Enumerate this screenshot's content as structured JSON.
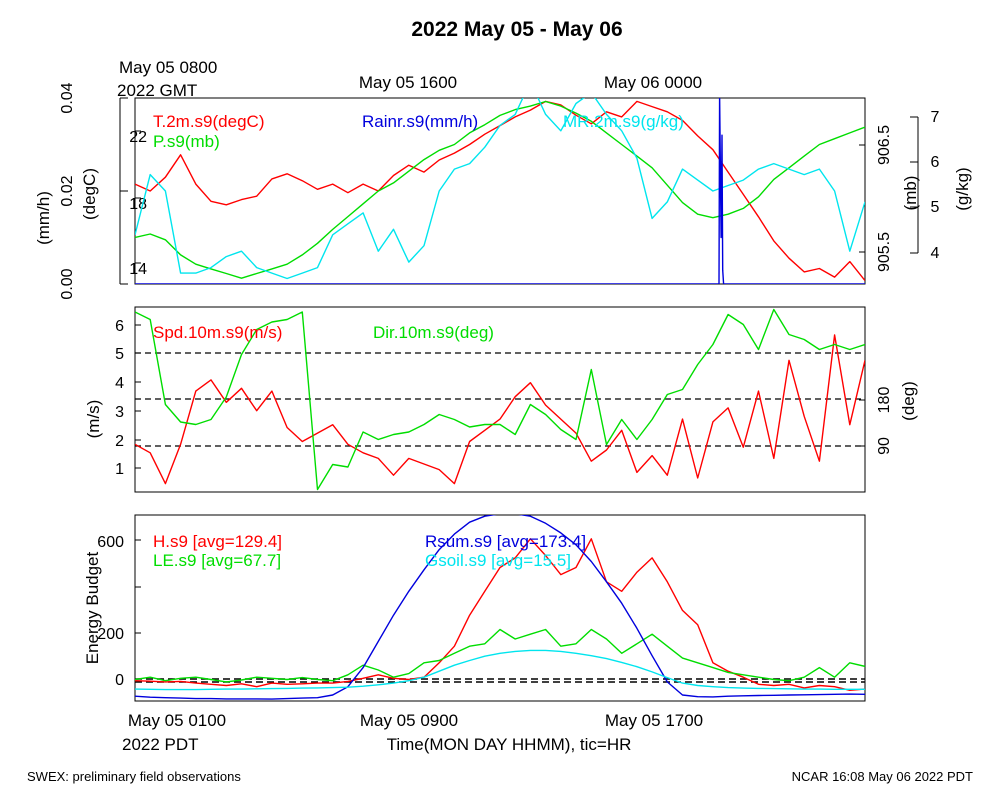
{
  "title": "2022 May 05 - May 06",
  "gmt_label": [
    "May 05 0800",
    "2022 GMT"
  ],
  "top_time_labels": [
    "May 05 1600",
    "May 06 0000"
  ],
  "bottom_time_labels": [
    "May 05 0100",
    "May 05 0900",
    "May 05 1700"
  ],
  "pdt_label": "2022 PDT",
  "xlabel": "Time(MON DAY HHMM), tic=HR",
  "footer_left": "SWEX: preliminary field observations",
  "footer_right": "NCAR 16:08 May 06 2022 PDT",
  "colors": {
    "red": "#ff0000",
    "green": "#00dd00",
    "blue": "#0000dd",
    "cyan": "#00e5ee"
  },
  "chart_data": [
    {
      "type": "line",
      "x_range_hours": [
        0,
        24
      ],
      "axes": {
        "rain": {
          "label": "(mm/h)",
          "ticks": [
            "0.00",
            "0.02",
            "0.04"
          ],
          "range": [
            0,
            0.04
          ]
        },
        "temp": {
          "label": "(degC)",
          "ticks": [
            "14",
            "18",
            "22"
          ],
          "range": [
            13.2,
            24.0
          ]
        },
        "pressure": {
          "label": "(mb)",
          "ticks": [
            "905.5",
            "906.5"
          ],
          "range": [
            905.25,
            906.85
          ]
        },
        "mixing_ratio": {
          "label": "(g/kg)",
          "ticks": [
            "4",
            "5",
            "6",
            "7"
          ],
          "range": [
            3.7,
            7.1
          ]
        }
      },
      "series": [
        {
          "name": "T.2m.s9(degC)",
          "color": "red",
          "axis": "temp",
          "x": [
            0,
            0.5,
            1,
            1.5,
            2,
            2.5,
            3,
            3.5,
            4,
            4.5,
            5,
            5.5,
            6,
            6.5,
            7,
            7.5,
            8,
            8.5,
            9,
            9.5,
            10,
            10.5,
            11,
            11.5,
            12,
            12.5,
            13,
            13.5,
            14,
            14.5,
            15,
            15.5,
            16,
            16.5,
            17,
            17.5,
            18,
            18.5,
            19,
            19.5,
            20,
            20.5,
            21,
            21.5,
            22,
            22.5,
            23,
            23.5,
            24
          ],
          "values": [
            19.0,
            18.6,
            19.4,
            20.7,
            19.0,
            18.0,
            17.8,
            18.1,
            18.3,
            19.3,
            19.6,
            19.2,
            18.7,
            19.0,
            18.5,
            19.0,
            18.6,
            19.5,
            20.1,
            19.7,
            20.4,
            20.8,
            21.3,
            21.9,
            22.4,
            22.9,
            23.3,
            23.8,
            23.6,
            23.0,
            22.5,
            23.2,
            22.9,
            23.8,
            23.5,
            23.2,
            22.7,
            21.8,
            21.0,
            19.7,
            18.4,
            17.1,
            15.7,
            14.7,
            13.9,
            14.1,
            13.6,
            14.5,
            13.4
          ]
        },
        {
          "name": "P.s9(mb)",
          "color": "green",
          "axis": "pressure",
          "x": [
            0,
            0.5,
            1,
            1.5,
            2,
            2.5,
            3,
            3.5,
            4,
            4.5,
            5,
            5.5,
            6,
            6.5,
            7,
            7.5,
            8,
            8.5,
            9,
            9.5,
            10,
            10.5,
            11,
            11.5,
            12,
            12.5,
            13,
            13.5,
            14,
            14.5,
            15,
            15.5,
            16,
            16.5,
            17,
            17.5,
            18,
            18.5,
            19,
            19.5,
            20,
            20.5,
            21,
            21.5,
            22,
            22.5,
            23,
            23.5,
            24
          ],
          "values": [
            905.65,
            905.68,
            905.63,
            905.5,
            905.42,
            905.38,
            905.34,
            905.3,
            905.34,
            905.38,
            905.42,
            905.5,
            905.6,
            905.72,
            905.83,
            905.94,
            906.05,
            906.12,
            906.22,
            906.32,
            906.4,
            906.45,
            906.55,
            906.62,
            906.7,
            906.75,
            906.78,
            906.82,
            906.78,
            906.72,
            906.65,
            906.55,
            906.45,
            906.35,
            906.25,
            906.1,
            905.95,
            905.85,
            905.82,
            905.85,
            905.9,
            906.0,
            906.15,
            906.25,
            906.35,
            906.45,
            906.5,
            906.55,
            906.6
          ]
        },
        {
          "name": "MR.2m.s9(g/kg)",
          "color": "cyan",
          "axis": "mixing_ratio",
          "x": [
            0,
            0.5,
            1,
            1.5,
            2,
            2.5,
            3,
            3.5,
            4,
            4.5,
            5,
            5.5,
            6,
            6.5,
            7,
            7.5,
            8,
            8.5,
            9,
            9.5,
            10,
            10.5,
            11,
            11.5,
            12,
            12.5,
            13,
            13.5,
            14,
            14.5,
            15,
            15.5,
            16,
            16.5,
            17,
            17.5,
            18,
            18.5,
            19,
            19.5,
            20,
            20.5,
            21,
            21.5,
            22,
            22.5,
            23,
            23.5,
            24
          ],
          "values": [
            4.6,
            5.7,
            5.4,
            3.9,
            3.9,
            4.0,
            4.2,
            4.3,
            4.0,
            3.9,
            3.8,
            3.9,
            4.0,
            4.6,
            4.8,
            5.0,
            4.3,
            4.7,
            4.1,
            4.4,
            5.4,
            5.8,
            5.9,
            6.2,
            6.6,
            6.8,
            7.4,
            6.8,
            6.5,
            7.0,
            7.2,
            6.8,
            6.5,
            6.0,
            4.9,
            5.2,
            5.8,
            5.6,
            5.4,
            5.5,
            5.6,
            5.8,
            5.9,
            5.8,
            5.7,
            5.8,
            5.4,
            4.3,
            5.2
          ]
        },
        {
          "name": "Rainr.s9(mm/h)",
          "color": "blue",
          "axis": "rain",
          "x": [
            0,
            19.2,
            19.22,
            19.27,
            19.3,
            19.32,
            19.35,
            24
          ],
          "values": [
            0,
            0,
            0.041,
            0.01,
            0.032,
            0.003,
            0,
            0
          ]
        }
      ]
    },
    {
      "type": "line",
      "x_range_hours": [
        0,
        24
      ],
      "axes": {
        "speed": {
          "label": "(m/s)",
          "ticks": [
            "1",
            "2",
            "3",
            "4",
            "5",
            "6"
          ],
          "range": [
            0.1,
            6.7
          ]
        },
        "direction": {
          "label": "(deg)",
          "ticks": [
            "90",
            "180"
          ],
          "range": [
            -5,
            365
          ]
        }
      },
      "reference_lines_m_s": [
        1.75,
        3.4,
        5.05
      ],
      "series": [
        {
          "name": "Spd.10m.s9(m/s)",
          "color": "red",
          "axis": "speed",
          "x": [
            0,
            0.5,
            1,
            1.5,
            2,
            2.5,
            3,
            3.5,
            4,
            4.5,
            5,
            5.5,
            6,
            6.5,
            7,
            7.5,
            8,
            8.5,
            9,
            9.5,
            10,
            10.5,
            11,
            11.5,
            12,
            12.5,
            13,
            13.5,
            14,
            14.5,
            15,
            15.5,
            16,
            16.5,
            17,
            17.5,
            18,
            18.5,
            19,
            19.5,
            20,
            20.5,
            21,
            21.5,
            22,
            22.5,
            23,
            23.5,
            24
          ],
          "values": [
            1.8,
            1.5,
            0.4,
            1.8,
            3.7,
            4.1,
            3.3,
            3.8,
            3.0,
            3.7,
            2.4,
            1.9,
            2.2,
            2.5,
            1.8,
            1.5,
            1.3,
            0.7,
            1.3,
            1.1,
            0.9,
            0.4,
            1.9,
            2.3,
            2.7,
            3.5,
            4.0,
            3.2,
            2.7,
            2.2,
            1.2,
            1.6,
            2.3,
            0.8,
            1.4,
            0.7,
            2.7,
            0.6,
            2.6,
            3.1,
            1.7,
            3.7,
            1.3,
            4.8,
            2.8,
            1.2,
            5.7,
            2.5,
            4.8
          ]
        },
        {
          "name": "Dir.10m.s9(deg)",
          "color": "green",
          "axis": "direction",
          "x": [
            0,
            0.5,
            1,
            1.5,
            2,
            2.5,
            3,
            3.5,
            4,
            4.5,
            5,
            5.5,
            6,
            6.5,
            7,
            7.5,
            8,
            8.5,
            9,
            9.5,
            10,
            10.5,
            11,
            11.5,
            12,
            12.5,
            13,
            13.5,
            14,
            14.5,
            15,
            15.5,
            16,
            16.5,
            17,
            17.5,
            18,
            18.5,
            19,
            19.5,
            20,
            20.5,
            21,
            21.5,
            22,
            22.5,
            23,
            23.5,
            24
          ],
          "values": [
            355,
            340,
            170,
            135,
            130,
            140,
            185,
            270,
            320,
            335,
            340,
            355,
            0,
            50,
            45,
            115,
            100,
            110,
            115,
            130,
            150,
            140,
            125,
            130,
            130,
            110,
            170,
            150,
            120,
            100,
            240,
            90,
            140,
            100,
            140,
            190,
            200,
            250,
            290,
            350,
            330,
            280,
            360,
            310,
            300,
            280,
            290,
            280,
            290
          ]
        }
      ]
    },
    {
      "type": "line",
      "x_range_hours": [
        0,
        24
      ],
      "axes": {
        "energy": {
          "label": "Energy Budget",
          "ticks": [
            "0",
            "200",
            "400",
            "600"
          ],
          "range": [
            -80,
            700
          ]
        }
      },
      "reference_lines": [
        0,
        12
      ],
      "series": [
        {
          "name": "H.s9 [avg=129.4]",
          "color": "red",
          "x": [
            0,
            0.5,
            1,
            1.5,
            2,
            2.5,
            3,
            3.5,
            4,
            4.5,
            5,
            5.5,
            6,
            6.5,
            7,
            7.5,
            8,
            8.5,
            9,
            9.5,
            10,
            10.5,
            11,
            11.5,
            12,
            12.5,
            13,
            13.5,
            14,
            14.5,
            15,
            15.5,
            16,
            16.5,
            17,
            17.5,
            18,
            18.5,
            19,
            19.5,
            20,
            20.5,
            21,
            21.5,
            22,
            22.5,
            23,
            23.5,
            24
          ],
          "values": [
            5,
            3,
            0,
            2,
            -5,
            -10,
            -15,
            -8,
            -20,
            -5,
            -10,
            -8,
            -5,
            -5,
            2,
            15,
            30,
            15,
            10,
            20,
            80,
            150,
            280,
            380,
            480,
            520,
            600,
            530,
            450,
            480,
            600,
            420,
            380,
            460,
            520,
            420,
            300,
            240,
            80,
            45,
            20,
            -10,
            -15,
            -10,
            -25,
            -15,
            -20,
            -35,
            -30
          ]
        },
        {
          "name": "LE.s9 [avg=67.7]",
          "color": "green",
          "x": [
            0,
            0.5,
            1,
            1.5,
            2,
            2.5,
            3,
            3.5,
            4,
            4.5,
            5,
            5.5,
            6,
            6.5,
            7,
            7.5,
            8,
            8.5,
            9,
            9.5,
            10,
            10.5,
            11,
            11.5,
            12,
            12.5,
            13,
            13.5,
            14,
            14.5,
            15,
            15.5,
            16,
            16.5,
            17,
            17.5,
            18,
            18.5,
            19,
            19.5,
            20,
            20.5,
            21,
            21.5,
            22,
            22.5,
            23,
            23.5,
            24
          ],
          "values": [
            10,
            20,
            5,
            15,
            20,
            10,
            0,
            8,
            20,
            15,
            10,
            18,
            10,
            5,
            30,
            70,
            50,
            20,
            35,
            80,
            90,
            120,
            150,
            160,
            220,
            180,
            200,
            220,
            150,
            160,
            220,
            180,
            120,
            160,
            200,
            150,
            100,
            80,
            60,
            40,
            30,
            20,
            10,
            5,
            20,
            60,
            20,
            80,
            65
          ]
        },
        {
          "name": "Rsum.s9 [avg=173.4]",
          "color": "blue",
          "x": [
            0,
            0.5,
            1,
            1.5,
            2,
            2.5,
            3,
            3.5,
            4,
            4.5,
            5,
            5.5,
            6,
            6.5,
            7,
            7.5,
            8,
            8.5,
            9,
            9.5,
            10,
            10.5,
            11,
            11.5,
            12,
            12.5,
            13,
            13.5,
            14,
            14.5,
            15,
            15.5,
            16,
            16.5,
            17,
            17.5,
            18,
            18.5,
            19,
            19.5,
            20,
            20.5,
            21,
            21.5,
            22,
            22.5,
            23,
            23.5,
            24
          ],
          "values": [
            -60,
            -64,
            -66,
            -68,
            -70,
            -70,
            -71,
            -71,
            -71,
            -72,
            -70,
            -68,
            -66,
            -55,
            -20,
            60,
            170,
            280,
            380,
            470,
            555,
            620,
            670,
            695,
            705,
            705,
            695,
            665,
            625,
            575,
            505,
            420,
            330,
            225,
            110,
            0,
            -55,
            -62,
            -63,
            -60,
            -58,
            -57,
            -56,
            -55,
            -54,
            -53,
            -52,
            -51,
            -52
          ]
        },
        {
          "name": "Gsoil.s9 [avg=15.5]",
          "color": "cyan",
          "x": [
            0,
            0.5,
            1,
            1.5,
            2,
            2.5,
            3,
            3.5,
            4,
            4.5,
            5,
            5.5,
            6,
            6.5,
            7,
            7.5,
            8,
            8.5,
            9,
            9.5,
            10,
            10.5,
            11,
            11.5,
            12,
            12.5,
            13,
            13.5,
            14,
            14.5,
            15,
            15.5,
            16,
            16.5,
            17,
            17.5,
            18,
            18.5,
            19,
            19.5,
            20,
            20.5,
            21,
            21.5,
            22,
            22.5,
            23,
            23.5,
            24
          ],
          "values": [
            -30,
            -31,
            -32,
            -32,
            -32,
            -31,
            -30,
            -30,
            -29,
            -28,
            -27,
            -26,
            -25,
            -24,
            -22,
            -18,
            -12,
            -5,
            5,
            20,
            45,
            70,
            90,
            108,
            120,
            128,
            132,
            132,
            128,
            120,
            110,
            98,
            82,
            64,
            42,
            18,
            -5,
            -15,
            -20,
            -24,
            -26,
            -27,
            -28,
            -29,
            -30,
            -30,
            -31,
            -31,
            -31
          ]
        }
      ]
    }
  ]
}
